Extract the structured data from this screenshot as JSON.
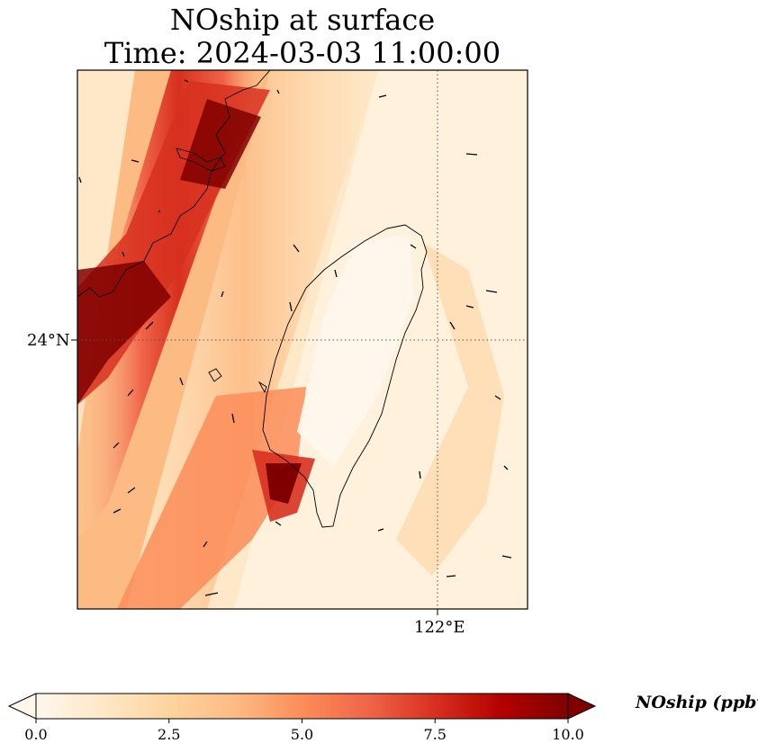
{
  "title": {
    "line1": "NOship at surface",
    "line2": "Time: 2024-03-03 11:00:00"
  },
  "map": {
    "lat_tick_label": "24°N",
    "lon_tick_label": "122°E",
    "gridline_style": "dotted",
    "coastline": "Taiwan and Fujian coast"
  },
  "colorbar": {
    "label": "NOship (ppbv)",
    "colormap": "OrRd",
    "ticks": [
      "0.0",
      "2.5",
      "5.0",
      "7.5",
      "10.0"
    ],
    "range": [
      0,
      10
    ],
    "extend": "both",
    "colors": [
      "#fff7ec",
      "#fee8c8",
      "#fdd49e",
      "#fdbb84",
      "#fc8d59",
      "#ef6548",
      "#d7301f",
      "#b30000",
      "#7f0000"
    ]
  }
}
